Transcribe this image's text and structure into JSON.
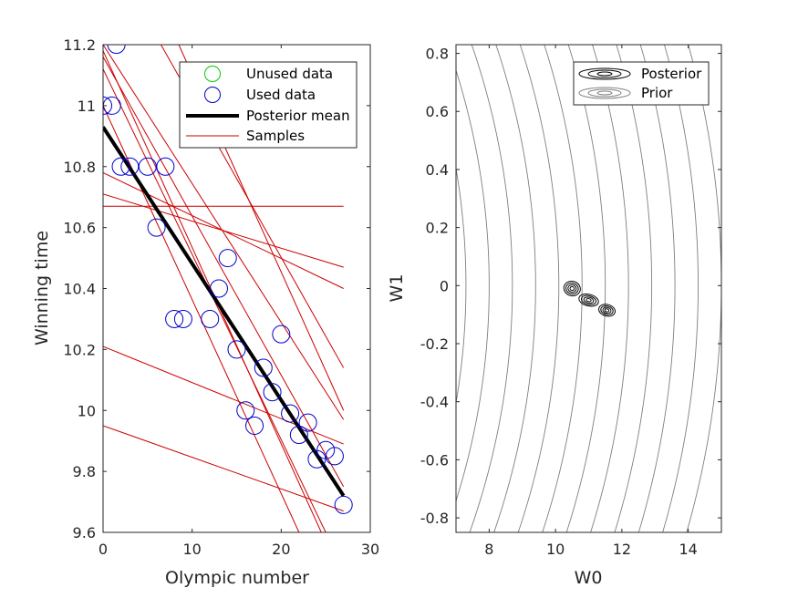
{
  "chart_data": [
    {
      "type": "scatter",
      "xlabel": "Olympic number",
      "ylabel": "Winning time",
      "xlim": [
        0,
        30
      ],
      "ylim": [
        9.6,
        11.2
      ],
      "xticks": [
        0,
        10,
        20,
        30
      ],
      "xtick_labels": [
        "0",
        "10",
        "20",
        "30"
      ],
      "yticks": [
        9.6,
        9.8,
        10,
        10.2,
        10.4,
        10.6,
        10.8,
        11,
        11.2
      ],
      "ytick_labels": [
        "9.6",
        "9.8",
        "10",
        "10.2",
        "10.4",
        "10.6",
        "10.8",
        "11",
        "11.2"
      ],
      "grid": false,
      "legend_position": "top-right",
      "legend": [
        "Unused data",
        "Used data",
        "Posterior mean",
        "Samples"
      ],
      "series": [
        {
          "name": "Unused data",
          "type": "scatter",
          "color": "#00cc00",
          "x": [],
          "y": []
        },
        {
          "name": "Used data",
          "type": "scatter",
          "color": "#0000cc",
          "x": [
            0,
            1,
            1.5,
            2,
            3,
            5,
            7,
            6,
            8,
            9,
            12,
            13,
            14,
            15,
            16,
            17,
            18,
            19,
            20,
            21,
            22,
            23,
            24,
            25,
            26,
            27
          ],
          "y": [
            11.0,
            11.0,
            11.2,
            10.8,
            10.8,
            10.8,
            10.8,
            10.6,
            10.3,
            10.3,
            10.3,
            10.4,
            10.5,
            10.2,
            10.0,
            9.95,
            10.14,
            10.06,
            10.25,
            9.99,
            9.92,
            9.96,
            9.84,
            9.87,
            9.85,
            9.69
          ]
        },
        {
          "name": "Posterior mean",
          "type": "line",
          "color": "#000000",
          "x": [
            0,
            27
          ],
          "y": [
            10.93,
            9.72
          ]
        },
        {
          "name": "Samples",
          "type": "line",
          "color": "#cc0000",
          "lines": [
            {
              "x": [
                0,
                27
              ],
              "y": [
                10.67,
                10.67
              ]
            },
            {
              "x": [
                0,
                27
              ],
              "y": [
                10.71,
                10.47
              ]
            },
            {
              "x": [
                0,
                27
              ],
              "y": [
                10.78,
                10.4
              ]
            },
            {
              "x": [
                0,
                27
              ],
              "y": [
                10.21,
                9.89
              ]
            },
            {
              "x": [
                0,
                27
              ],
              "y": [
                9.95,
                9.67
              ]
            },
            {
              "x": [
                0,
                24.5
              ],
              "y": [
                11.18,
                9.6
              ]
            },
            {
              "x": [
                0,
                22
              ],
              "y": [
                11.0,
                9.6
              ]
            },
            {
              "x": [
                0,
                25
              ],
              "y": [
                11.12,
                9.6
              ]
            },
            {
              "x": [
                0,
                27
              ],
              "y": [
                11.16,
                9.75
              ]
            },
            {
              "x": [
                0,
                27
              ],
              "y": [
                11.2,
                9.97
              ]
            },
            {
              "x": [
                6.5,
                27
              ],
              "y": [
                11.2,
                10.14
              ]
            },
            {
              "x": [
                8.5,
                27
              ],
              "y": [
                11.2,
                10.0
              ]
            }
          ]
        }
      ]
    },
    {
      "type": "contour",
      "xlabel": "W0",
      "ylabel": "W1",
      "xlim": [
        7,
        15
      ],
      "ylim": [
        -0.85,
        0.83
      ],
      "xticks": [
        8,
        10,
        12,
        14
      ],
      "xtick_labels": [
        "8",
        "10",
        "12",
        "14"
      ],
      "yticks": [
        -0.8,
        -0.6,
        -0.4,
        -0.2,
        0,
        0.2,
        0.4,
        0.6,
        0.8
      ],
      "ytick_labels": [
        "-0.8",
        "-0.6",
        "-0.4",
        "-0.2",
        "0",
        "0.2",
        "0.4",
        "0.6",
        "0.8"
      ],
      "grid": false,
      "legend_position": "top-right",
      "legend": [
        "Posterior",
        "Prior"
      ],
      "series": [
        {
          "name": "Posterior",
          "color": "#000000",
          "mode_w0": 11.0,
          "mode_w1": -0.05,
          "blobs": [
            {
              "w0": 10.5,
              "w1": -0.01,
              "sw0": 0.25,
              "sw1": 0.025
            },
            {
              "w0": 11.0,
              "w1": -0.05,
              "sw0": 0.3,
              "sw1": 0.02
            },
            {
              "w0": 11.55,
              "w1": -0.085,
              "sw0": 0.25,
              "sw1": 0.02
            }
          ],
          "levels": [
            0.25,
            0.5,
            0.75,
            1.0
          ]
        },
        {
          "name": "Prior",
          "color": "#7f7f7f",
          "level_w0_at_w1_0": [
            7.3,
            8.0,
            8.7,
            9.4,
            10.1,
            10.8,
            11.5,
            12.2,
            12.9,
            13.6,
            14.3,
            15.0
          ]
        }
      ]
    }
  ]
}
